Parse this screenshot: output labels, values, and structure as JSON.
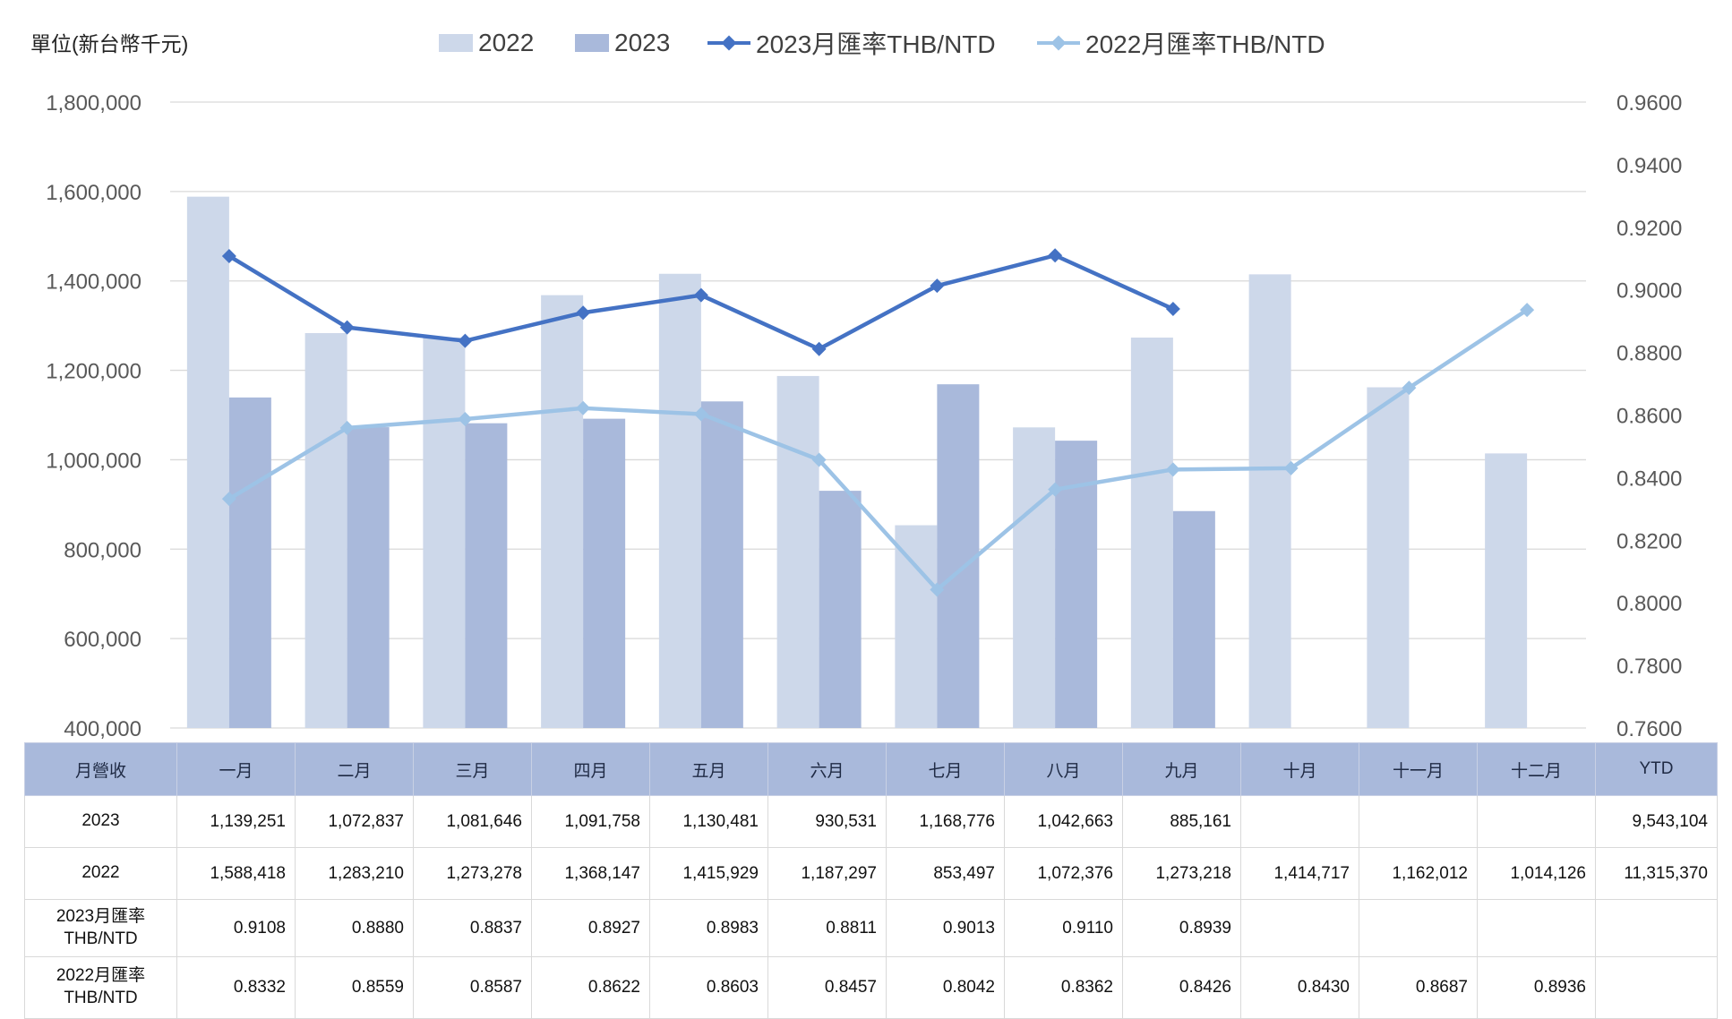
{
  "unit_label": "單位(新台幣千元)",
  "colors": {
    "bar_2022": "#cdd8ea",
    "bar_2023": "#a9b9db",
    "line_2023": "#4472c4",
    "line_2022": "#9dc3e6",
    "grid": "#d9d9d9",
    "axis_text": "#595959"
  },
  "chart_data": {
    "type": "bar",
    "categories": [
      "一月",
      "二月",
      "三月",
      "四月",
      "五月",
      "六月",
      "七月",
      "八月",
      "九月",
      "十月",
      "十一月",
      "十二月"
    ],
    "series": [
      {
        "name": "2022",
        "type": "bar",
        "axis": "left",
        "values": [
          1588418,
          1283210,
          1273278,
          1368147,
          1415929,
          1187297,
          853497,
          1072376,
          1273218,
          1414717,
          1162012,
          1014126
        ]
      },
      {
        "name": "2023",
        "type": "bar",
        "axis": "left",
        "values": [
          1139251,
          1072837,
          1081646,
          1091758,
          1130481,
          930531,
          1168776,
          1042663,
          885161,
          null,
          null,
          null
        ]
      },
      {
        "name": "2023月匯率THB/NTD",
        "type": "line",
        "axis": "right",
        "values": [
          0.9108,
          0.888,
          0.8837,
          0.8927,
          0.8983,
          0.8811,
          0.9013,
          0.911,
          0.8939,
          null,
          null,
          null
        ]
      },
      {
        "name": "2022月匯率THB/NTD",
        "type": "line",
        "axis": "right",
        "values": [
          0.8332,
          0.8559,
          0.8587,
          0.8622,
          0.8603,
          0.8457,
          0.8042,
          0.8362,
          0.8426,
          0.843,
          0.8687,
          0.8936
        ]
      }
    ],
    "ylim_left": [
      400000,
      1800000
    ],
    "yticks_left": [
      "1,800,000",
      "1,600,000",
      "1,400,000",
      "1,200,000",
      "1,000,000",
      "800,000",
      "600,000",
      "400,000"
    ],
    "ylim_right": [
      0.76,
      0.96
    ],
    "yticks_right": [
      "0.9600",
      "0.9400",
      "0.9200",
      "0.9000",
      "0.8800",
      "0.8600",
      "0.8400",
      "0.8200",
      "0.8000",
      "0.7800",
      "0.7600"
    ],
    "grid": true,
    "legend_position": "top"
  },
  "table": {
    "header": [
      "月營收",
      "一月",
      "二月",
      "三月",
      "四月",
      "五月",
      "六月",
      "七月",
      "八月",
      "九月",
      "十月",
      "十一月",
      "十二月",
      "YTD"
    ],
    "rows": [
      {
        "label": "2023",
        "cells": [
          "1,139,251",
          "1,072,837",
          "1,081,646",
          "1,091,758",
          "1,130,481",
          "930,531",
          "1,168,776",
          "1,042,663",
          "885,161",
          "",
          "",
          "",
          "9,543,104"
        ]
      },
      {
        "label": "2022",
        "cells": [
          "1,588,418",
          "1,283,210",
          "1,273,278",
          "1,368,147",
          "1,415,929",
          "1,187,297",
          "853,497",
          "1,072,376",
          "1,273,218",
          "1,414,717",
          "1,162,012",
          "1,014,126",
          "11,315,370"
        ]
      },
      {
        "label_line1": "2023月匯率",
        "label_line2": "THB/NTD",
        "cells": [
          "0.9108",
          "0.8880",
          "0.8837",
          "0.8927",
          "0.8983",
          "0.8811",
          "0.9013",
          "0.9110",
          "0.8939",
          "",
          "",
          "",
          ""
        ]
      },
      {
        "label_line1": "2022月匯率",
        "label_line2": "THB/NTD",
        "cells": [
          "0.8332",
          "0.8559",
          "0.8587",
          "0.8622",
          "0.8603",
          "0.8457",
          "0.8042",
          "0.8362",
          "0.8426",
          "0.8430",
          "0.8687",
          "0.8936",
          ""
        ]
      }
    ]
  }
}
